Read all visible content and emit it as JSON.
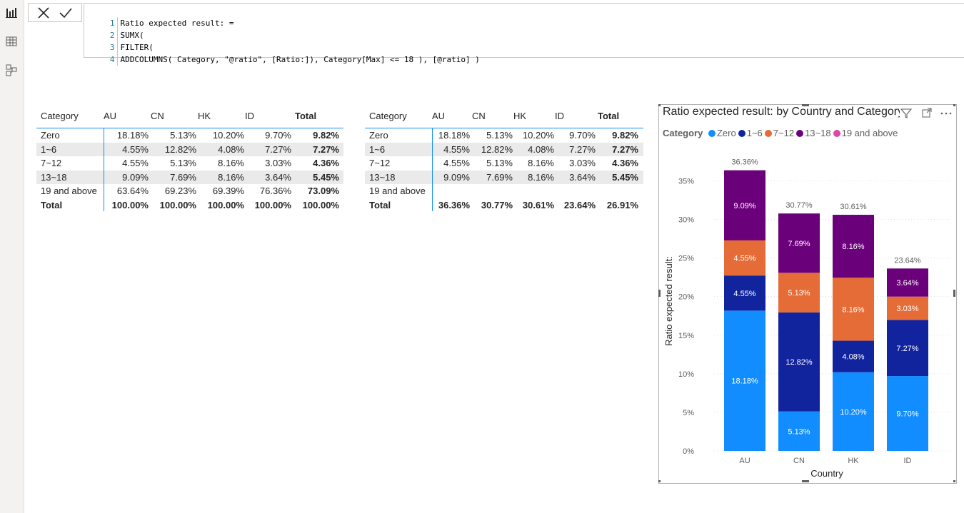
{
  "formula": {
    "lines": [
      {
        "n": "1",
        "text": "Ratio expected result: ="
      },
      {
        "n": "2",
        "text": "SUMX("
      },
      {
        "n": "3",
        "text": "FILTER("
      },
      {
        "n": "4",
        "text": "ADDCOLUMNS( Category, \"@ratio\", [Ratio:]), Category[Max] <= 18 ), [@ratio] )"
      }
    ]
  },
  "table1": {
    "headers": [
      "Category",
      "AU",
      "CN",
      "HK",
      "ID",
      "Total"
    ],
    "rows": [
      [
        "Zero",
        "18.18%",
        "5.13%",
        "10.20%",
        "9.70%",
        "9.82%"
      ],
      [
        "1~6",
        "4.55%",
        "12.82%",
        "4.08%",
        "7.27%",
        "7.27%"
      ],
      [
        "7~12",
        "4.55%",
        "5.13%",
        "8.16%",
        "3.03%",
        "4.36%"
      ],
      [
        "13~18",
        "9.09%",
        "7.69%",
        "8.16%",
        "3.64%",
        "5.45%"
      ],
      [
        "19 and above",
        "63.64%",
        "69.23%",
        "69.39%",
        "76.36%",
        "73.09%"
      ]
    ],
    "total": [
      "Total",
      "100.00%",
      "100.00%",
      "100.00%",
      "100.00%",
      "100.00%"
    ]
  },
  "table2": {
    "headers": [
      "Category",
      "AU",
      "CN",
      "HK",
      "ID",
      "Total"
    ],
    "rows": [
      [
        "Zero",
        "18.18%",
        "5.13%",
        "10.20%",
        "9.70%",
        "9.82%"
      ],
      [
        "1~6",
        "4.55%",
        "12.82%",
        "4.08%",
        "7.27%",
        "7.27%"
      ],
      [
        "7~12",
        "4.55%",
        "5.13%",
        "8.16%",
        "3.03%",
        "4.36%"
      ],
      [
        "13~18",
        "9.09%",
        "7.69%",
        "8.16%",
        "3.64%",
        "5.45%"
      ],
      [
        "19 and above",
        "",
        "",
        "",
        "",
        ""
      ]
    ],
    "total": [
      "Total",
      "36.36%",
      "30.77%",
      "30.61%",
      "23.64%",
      "26.91%"
    ]
  },
  "chart": {
    "title": "Ratio expected result: by Country and Category",
    "legend_title": "Category",
    "icons": [
      "filter-icon",
      "focus-mode-icon",
      "more-options-icon"
    ]
  },
  "chart_data": {
    "type": "bar",
    "stacked": true,
    "title": "Ratio expected result: by Country and Category",
    "xlabel": "Country",
    "ylabel": "Ratio expected result:",
    "categories": [
      "AU",
      "CN",
      "HK",
      "ID"
    ],
    "yticks": [
      "0%",
      "5%",
      "10%",
      "15%",
      "20%",
      "25%",
      "30%",
      "35%"
    ],
    "ylim": [
      0,
      38
    ],
    "grid": true,
    "legend_position": "top-left",
    "series": [
      {
        "name": "Zero",
        "color": "#118dff",
        "values": [
          18.18,
          5.13,
          10.2,
          9.7
        ],
        "labels": [
          "18.18%",
          "5.13%",
          "10.20%",
          "9.70%"
        ]
      },
      {
        "name": "1~6",
        "color": "#12239e",
        "values": [
          4.55,
          12.82,
          4.08,
          7.27
        ],
        "labels": [
          "4.55%",
          "12.82%",
          "4.08%",
          "7.27%"
        ]
      },
      {
        "name": "7~12",
        "color": "#e66c37",
        "values": [
          4.55,
          5.13,
          8.16,
          3.03
        ],
        "labels": [
          "4.55%",
          "5.13%",
          "8.16%",
          "3.03%"
        ]
      },
      {
        "name": "13~18",
        "color": "#6b007b",
        "values": [
          9.09,
          7.69,
          8.16,
          3.64
        ],
        "labels": [
          "9.09%",
          "7.69%",
          "8.16%",
          "3.64%"
        ]
      },
      {
        "name": "19 and above",
        "color": "#e044a7",
        "values": [
          0,
          0,
          0,
          0
        ],
        "labels": [
          "",
          "",
          "",
          ""
        ]
      }
    ],
    "totals": [
      "36.36%",
      "30.77%",
      "30.61%",
      "23.64%"
    ]
  }
}
